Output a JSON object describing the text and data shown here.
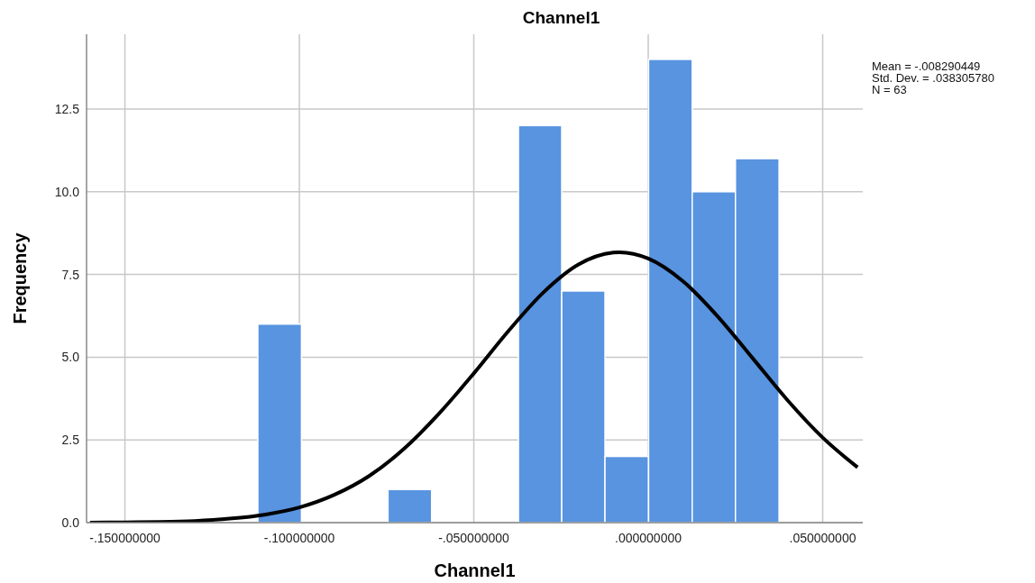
{
  "chart_data": {
    "type": "histogram",
    "title": "Channel1",
    "xlabel": "Channel1",
    "ylabel": "Frequency",
    "bins": [
      -0.1119,
      -0.0994,
      -0.087,
      -0.0746,
      -0.0621,
      -0.0497,
      -0.0372,
      -0.0248,
      -0.0124,
      0.0001,
      0.0126,
      0.025,
      0.0375
    ],
    "series": [
      {
        "color": "#5894e0",
        "values": [
          6,
          0,
          0,
          1,
          0,
          0,
          12,
          7,
          2,
          14,
          10,
          11
        ]
      },
      {
        "type": "line",
        "color": "#000000",
        "x": [
          -0.16,
          -0.15,
          -0.14,
          -0.13,
          -0.12,
          -0.11,
          -0.1,
          -0.09,
          -0.08,
          -0.07,
          -0.06,
          -0.05,
          -0.04,
          -0.03,
          -0.02,
          -0.01,
          -0.0083,
          0.0,
          0.01,
          0.02,
          0.03,
          0.04,
          0.05,
          0.06
        ],
        "values": [
          0.0,
          0.01,
          0.02,
          0.05,
          0.12,
          0.24,
          0.46,
          0.84,
          1.41,
          2.23,
          3.29,
          4.51,
          5.8,
          6.96,
          7.8,
          8.16,
          8.17,
          7.98,
          7.29,
          6.22,
          4.96,
          3.69,
          2.57,
          1.67
        ]
      }
    ],
    "xlim": [
      -0.161,
      0.0615
    ],
    "ylim": [
      0,
      14.76
    ],
    "xticks": [
      {
        "value": -0.15,
        "label": "-.150000000"
      },
      {
        "value": -0.1,
        "label": "-.100000000"
      },
      {
        "value": -0.05,
        "label": "-.050000000"
      },
      {
        "value": 0,
        "label": ".000000000"
      },
      {
        "value": 0.05,
        "label": ".050000000"
      }
    ],
    "yticks": [
      {
        "value": 0,
        "label": "0.0"
      },
      {
        "value": 2.5,
        "label": "2.5"
      },
      {
        "value": 5,
        "label": "5.0"
      },
      {
        "value": 7.5,
        "label": "7.5"
      },
      {
        "value": 10,
        "label": "10.0"
      },
      {
        "value": 12.5,
        "label": "12.5"
      }
    ],
    "grid": true,
    "annotations": [
      "Mean = -.008290449",
      "Std. Dev. = .038305780",
      "N = 63"
    ]
  }
}
